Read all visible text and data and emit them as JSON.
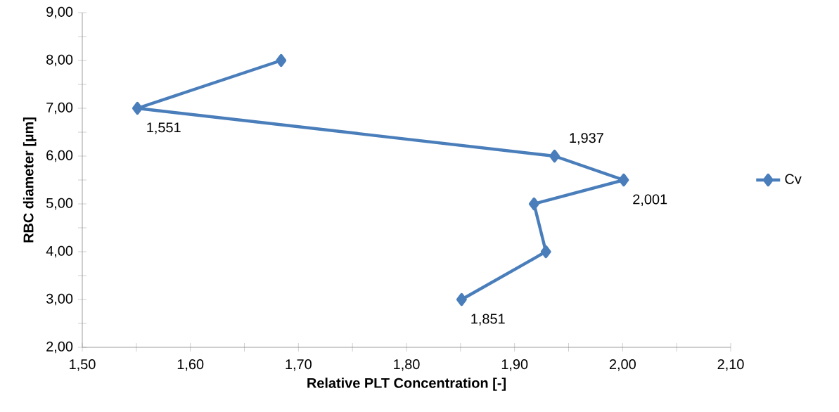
{
  "chart_data": {
    "type": "line",
    "xlabel": "Relative PLT Concentration [-]",
    "ylabel": "RBC diameter [µm]",
    "x": [
      1.684,
      1.551,
      1.937,
      2.001,
      1.918,
      1.929,
      1.851
    ],
    "series": [
      {
        "name": "Cv",
        "color": "#4a7ebb",
        "values": [
          8,
          7,
          6,
          5.5,
          5,
          4,
          3
        ]
      }
    ],
    "xlim": [
      1.5,
      2.1
    ],
    "xticks": [
      {
        "value": 1.5,
        "label": "1,50"
      },
      {
        "value": 1.55,
        "label": null
      },
      {
        "value": 1.6,
        "label": "1,60"
      },
      {
        "value": 1.65,
        "label": null
      },
      {
        "value": 1.7,
        "label": "1,70"
      },
      {
        "value": 1.75,
        "label": null
      },
      {
        "value": 1.8,
        "label": "1,80"
      },
      {
        "value": 1.85,
        "label": null
      },
      {
        "value": 1.9,
        "label": "1,90"
      },
      {
        "value": 1.95,
        "label": null
      },
      {
        "value": 2.0,
        "label": "2,00"
      },
      {
        "value": 2.05,
        "label": null
      },
      {
        "value": 2.1,
        "label": "2,10"
      }
    ],
    "ylim": [
      2,
      9
    ],
    "yticks": [
      {
        "value": 2,
        "label": "2,00"
      },
      {
        "value": 2.5,
        "label": null
      },
      {
        "value": 3,
        "label": "3,00"
      },
      {
        "value": 3.5,
        "label": null
      },
      {
        "value": 4,
        "label": "4,00"
      },
      {
        "value": 4.5,
        "label": null
      },
      {
        "value": 5,
        "label": "5,00"
      },
      {
        "value": 5.5,
        "label": null
      },
      {
        "value": 6,
        "label": "6,00"
      },
      {
        "value": 6.5,
        "label": null
      },
      {
        "value": 7,
        "label": "7,00"
      },
      {
        "value": 7.5,
        "label": null
      },
      {
        "value": 8,
        "label": "8,00"
      },
      {
        "value": 8.5,
        "label": null
      },
      {
        "value": 9,
        "label": "9,00"
      }
    ],
    "annotations": [
      {
        "text": "1,551",
        "x": 1.551,
        "y": 7
      },
      {
        "text": "1,937",
        "x": 1.937,
        "y": 6
      },
      {
        "text": "2,001",
        "x": 2.001,
        "y": 5.5
      },
      {
        "text": "1,851",
        "x": 1.851,
        "y": 3
      }
    ],
    "marker": "diamond",
    "line_style": "solid",
    "grid": false,
    "legend": "right"
  }
}
